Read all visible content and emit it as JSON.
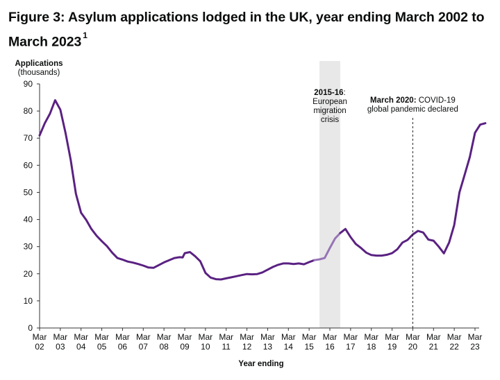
{
  "header": {
    "title": "Figure 3: Asylum applications lodged in the UK, year ending March 2002 to March 2023",
    "footnote_marker": "1"
  },
  "chart_data": {
    "type": "line",
    "ylabel_line1": "Applications",
    "ylabel_line2": "(thousands)",
    "xlabel": "Year ending",
    "ylim": [
      0,
      90
    ],
    "yticks": [
      0,
      10,
      20,
      30,
      40,
      50,
      60,
      70,
      80,
      90
    ],
    "xlim": [
      2002,
      2023
    ],
    "xticks": [
      {
        "year": 2002,
        "line1": "Mar",
        "line2": "02"
      },
      {
        "year": 2003,
        "line1": "Mar",
        "line2": "03"
      },
      {
        "year": 2004,
        "line1": "Mar",
        "line2": "04"
      },
      {
        "year": 2005,
        "line1": "Mar",
        "line2": "05"
      },
      {
        "year": 2006,
        "line1": "Mar",
        "line2": "06"
      },
      {
        "year": 2007,
        "line1": "Mar",
        "line2": "07"
      },
      {
        "year": 2008,
        "line1": "Mar",
        "line2": "08"
      },
      {
        "year": 2009,
        "line1": "Mar",
        "line2": "09"
      },
      {
        "year": 2010,
        "line1": "Mar",
        "line2": "10"
      },
      {
        "year": 2011,
        "line1": "Mar",
        "line2": "11"
      },
      {
        "year": 2012,
        "line1": "Mar",
        "line2": "12"
      },
      {
        "year": 2013,
        "line1": "Mar",
        "line2": "13"
      },
      {
        "year": 2014,
        "line1": "Mar",
        "line2": "14"
      },
      {
        "year": 2015,
        "line1": "Mar",
        "line2": "15"
      },
      {
        "year": 2016,
        "line1": "Mar",
        "line2": "16"
      },
      {
        "year": 2017,
        "line1": "Mar",
        "line2": "17"
      },
      {
        "year": 2018,
        "line1": "Mar",
        "line2": "18"
      },
      {
        "year": 2019,
        "line1": "Mar",
        "line2": "19"
      },
      {
        "year": 2020,
        "line1": "Mar",
        "line2": "20"
      },
      {
        "year": 2021,
        "line1": "Mar",
        "line2": "21"
      },
      {
        "year": 2022,
        "line1": "Mar",
        "line2": "22"
      },
      {
        "year": 2023,
        "line1": "Mar",
        "line2": "23"
      }
    ],
    "series": [
      {
        "color": "#5a2182",
        "highlight_color": "#9674b5",
        "highlight_range": [
          2015.5,
          2016.5
        ],
        "points": [
          [
            2002.0,
            71.0
          ],
          [
            2002.25,
            75.5
          ],
          [
            2002.5,
            79.0
          ],
          [
            2002.75,
            84.0
          ],
          [
            2003.0,
            80.5
          ],
          [
            2003.25,
            72.0
          ],
          [
            2003.5,
            62.0
          ],
          [
            2003.75,
            49.5
          ],
          [
            2004.0,
            42.5
          ],
          [
            2004.25,
            39.8
          ],
          [
            2004.5,
            36.5
          ],
          [
            2004.75,
            34.0
          ],
          [
            2005.0,
            32.0
          ],
          [
            2005.25,
            30.2
          ],
          [
            2005.5,
            27.8
          ],
          [
            2005.75,
            25.8
          ],
          [
            2006.0,
            25.2
          ],
          [
            2006.25,
            24.5
          ],
          [
            2006.5,
            24.1
          ],
          [
            2006.75,
            23.6
          ],
          [
            2007.0,
            23.0
          ],
          [
            2007.25,
            22.3
          ],
          [
            2007.5,
            22.2
          ],
          [
            2007.75,
            23.2
          ],
          [
            2008.0,
            24.2
          ],
          [
            2008.25,
            25.0
          ],
          [
            2008.5,
            25.8
          ],
          [
            2008.75,
            26.1
          ],
          [
            2008.9,
            26.0
          ],
          [
            2009.0,
            27.6
          ],
          [
            2009.25,
            28.0
          ],
          [
            2009.5,
            26.5
          ],
          [
            2009.75,
            24.6
          ],
          [
            2010.0,
            20.3
          ],
          [
            2010.25,
            18.6
          ],
          [
            2010.5,
            18.0
          ],
          [
            2010.75,
            17.9
          ],
          [
            2011.0,
            18.3
          ],
          [
            2011.25,
            18.7
          ],
          [
            2011.5,
            19.1
          ],
          [
            2011.75,
            19.5
          ],
          [
            2012.0,
            19.9
          ],
          [
            2012.25,
            19.8
          ],
          [
            2012.5,
            19.9
          ],
          [
            2012.75,
            20.5
          ],
          [
            2013.0,
            21.5
          ],
          [
            2013.25,
            22.5
          ],
          [
            2013.5,
            23.3
          ],
          [
            2013.75,
            23.8
          ],
          [
            2014.0,
            23.8
          ],
          [
            2014.25,
            23.6
          ],
          [
            2014.5,
            23.8
          ],
          [
            2014.75,
            23.5
          ],
          [
            2015.0,
            24.3
          ],
          [
            2015.25,
            25.0
          ],
          [
            2015.5,
            25.3
          ],
          [
            2015.75,
            25.8
          ],
          [
            2016.0,
            29.5
          ],
          [
            2016.25,
            33.0
          ],
          [
            2016.5,
            35.0
          ],
          [
            2016.75,
            36.5
          ],
          [
            2017.0,
            33.5
          ],
          [
            2017.25,
            31.0
          ],
          [
            2017.5,
            29.5
          ],
          [
            2017.75,
            27.8
          ],
          [
            2018.0,
            26.9
          ],
          [
            2018.25,
            26.7
          ],
          [
            2018.5,
            26.7
          ],
          [
            2018.75,
            27.0
          ],
          [
            2019.0,
            27.6
          ],
          [
            2019.25,
            29.0
          ],
          [
            2019.5,
            31.5
          ],
          [
            2019.75,
            32.5
          ],
          [
            2020.0,
            34.5
          ],
          [
            2020.25,
            35.8
          ],
          [
            2020.5,
            35.2
          ],
          [
            2020.75,
            32.6
          ],
          [
            2021.0,
            32.2
          ],
          [
            2021.25,
            30.0
          ],
          [
            2021.5,
            27.5
          ],
          [
            2021.75,
            31.5
          ],
          [
            2022.0,
            38.0
          ],
          [
            2022.25,
            50.0
          ],
          [
            2022.5,
            56.5
          ],
          [
            2022.75,
            63.0
          ],
          [
            2023.0,
            72.0
          ],
          [
            2023.25,
            75.0
          ],
          [
            2023.5,
            75.5
          ]
        ]
      }
    ],
    "annotations": [
      {
        "kind": "shaded-band",
        "x_range": [
          2015.5,
          2016.5
        ],
        "color": "#e8e8e8",
        "bold_text": "2015-16",
        "text_line1": ":",
        "text_line2": "European",
        "text_line3": "migration",
        "text_line4": "crisis"
      },
      {
        "kind": "dashed-line",
        "x": 2020.0,
        "bold_text": "March 2020:",
        "text_line1": " COVID-19",
        "text_line2": "global pandemic declared"
      }
    ]
  }
}
